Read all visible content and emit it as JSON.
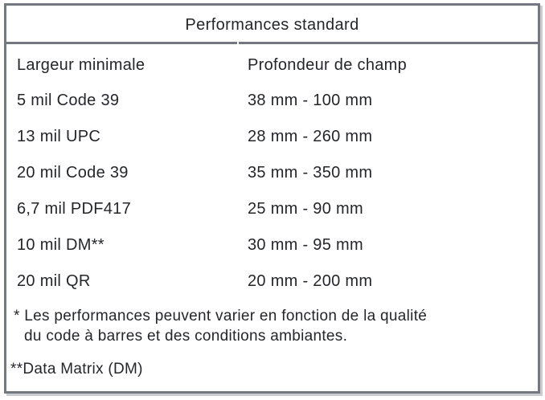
{
  "table": {
    "title": "Performances standard",
    "columns": {
      "width": "Largeur minimale",
      "depth": "Profondeur de champ"
    },
    "rows": [
      {
        "width": "5 mil Code 39",
        "depth": "38 mm - 100 mm"
      },
      {
        "width": "13 mil UPC",
        "depth": "28 mm - 260 mm"
      },
      {
        "width": "20 mil Code 39",
        "depth": "35 mm - 350 mm"
      },
      {
        "width": "6,7 mil PDF417",
        "depth": "25 mm - 90 mm"
      },
      {
        "width": "10 mil DM**",
        "depth": "30 mm - 95 mm"
      },
      {
        "width": "20 mil QR",
        "depth": "20 mm - 200 mm"
      }
    ],
    "footnotes": [
      {
        "marker": "*",
        "lines": [
          "Les performances peuvent varier en fonction de la qualité",
          "du code à barres et des conditions ambiantes."
        ]
      },
      {
        "marker": "**",
        "lines": [
          "Data Matrix (DM)"
        ]
      }
    ],
    "colors": {
      "border": "#73787f",
      "text": "#24262a",
      "background": "#ffffff"
    }
  }
}
